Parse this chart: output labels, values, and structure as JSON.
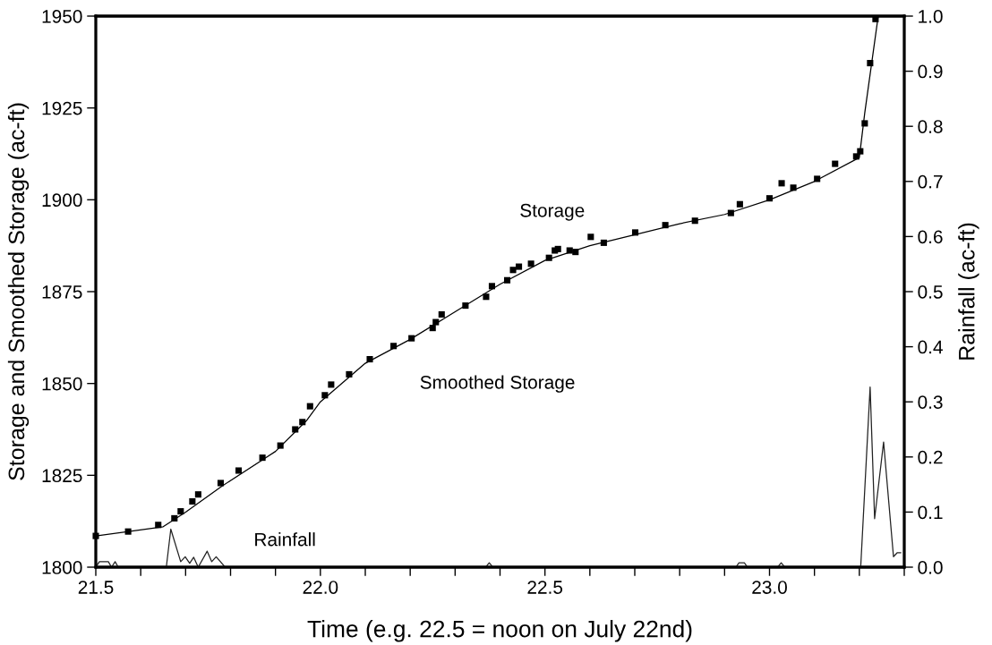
{
  "chart_data": {
    "type": "line",
    "xlabel": "Time (e.g. 22.5 = noon on July 22nd)",
    "ylabel": "Storage and Smoothed Storage (ac-ft)",
    "y2label": "Rainfall (ac-ft)",
    "xlim": [
      21.5,
      23.3
    ],
    "xticks": [
      {
        "value": 21.5,
        "label": "21.5"
      },
      {
        "value": 21.6,
        "label": null
      },
      {
        "value": 21.7,
        "label": null
      },
      {
        "value": 21.8,
        "label": null
      },
      {
        "value": 21.9,
        "label": null
      },
      {
        "value": 22.0,
        "label": "22.0"
      },
      {
        "value": 22.1,
        "label": null
      },
      {
        "value": 22.2,
        "label": null
      },
      {
        "value": 22.3,
        "label": null
      },
      {
        "value": 22.4,
        "label": null
      },
      {
        "value": 22.5,
        "label": "22.5"
      },
      {
        "value": 22.6,
        "label": null
      },
      {
        "value": 22.7,
        "label": null
      },
      {
        "value": 22.8,
        "label": null
      },
      {
        "value": 22.9,
        "label": null
      },
      {
        "value": 23.0,
        "label": "23.0"
      },
      {
        "value": 23.1,
        "label": null
      },
      {
        "value": 23.2,
        "label": null
      },
      {
        "value": 23.3,
        "label": null
      }
    ],
    "ylim": [
      1800,
      1950
    ],
    "yticks": [
      1800,
      1825,
      1850,
      1875,
      1900,
      1925,
      1950
    ],
    "y2lim": [
      0,
      1
    ],
    "y2ticks": [
      {
        "value": 0,
        "label": "0.0"
      },
      {
        "value": 0.1,
        "label": "0.1"
      },
      {
        "value": 0.2,
        "label": "0.2"
      },
      {
        "value": 0.3,
        "label": "0.3"
      },
      {
        "value": 0.4,
        "label": "0.4"
      },
      {
        "value": 0.5,
        "label": "0.5"
      },
      {
        "value": 0.6,
        "label": "0.6"
      },
      {
        "value": 0.7,
        "label": "0.7"
      },
      {
        "value": 0.8,
        "label": "0.8"
      },
      {
        "value": 0.9,
        "label": "0.9"
      },
      {
        "value": 1.0,
        "label": "1.0"
      }
    ],
    "grid": false,
    "legend": false,
    "series": [
      {
        "name": "Storage",
        "type": "scatter",
        "marker": "square",
        "color": "#000000",
        "x": [
          21.5,
          21.572,
          21.639,
          21.675,
          21.689,
          21.715,
          21.728,
          21.778,
          21.818,
          21.871,
          21.911,
          21.944,
          21.96,
          21.977,
          22.01,
          22.024,
          22.064,
          22.11,
          22.163,
          22.203,
          22.25,
          22.257,
          22.27,
          22.323,
          22.369,
          22.382,
          22.416,
          22.429,
          22.442,
          22.469,
          22.509,
          22.522,
          22.529,
          22.555,
          22.568,
          22.602,
          22.631,
          22.701,
          22.768,
          22.834,
          22.914,
          22.934,
          23.0,
          23.027,
          23.053,
          23.106,
          23.146,
          23.193,
          23.202,
          23.212,
          23.224,
          23.236
        ],
        "values": [
          1808.5,
          1809.7,
          1811.5,
          1813.3,
          1815.2,
          1817.9,
          1819.8,
          1822.9,
          1826.3,
          1829.8,
          1833.1,
          1837.5,
          1839.5,
          1843.8,
          1846.8,
          1849.7,
          1852.5,
          1856.6,
          1860.2,
          1862.3,
          1865.1,
          1866.7,
          1868.8,
          1871.2,
          1873.6,
          1876.5,
          1878.1,
          1880.9,
          1881.8,
          1882.6,
          1884.2,
          1886.2,
          1886.6,
          1886.2,
          1885.8,
          1889.9,
          1888.3,
          1891.1,
          1893.1,
          1894.3,
          1896.4,
          1898.8,
          1900.4,
          1904.5,
          1903.3,
          1905.7,
          1909.8,
          1911.8,
          1913.2,
          1920.8,
          1937.2,
          1949.2
        ]
      },
      {
        "name": "Smoothed Storage",
        "marker": "none",
        "color": "#000000",
        "x": [
          21.5,
          21.65,
          21.7,
          21.78,
          21.9,
          21.97,
          22.0,
          22.1,
          22.2,
          22.3,
          22.4,
          22.5,
          22.6,
          22.7,
          22.8,
          22.9,
          23.0,
          23.1,
          23.2,
          23.212,
          23.242
        ],
        "values": [
          1808.5,
          1811,
          1815,
          1822,
          1831.5,
          1840,
          1845,
          1855.5,
          1862,
          1869.5,
          1877,
          1883.5,
          1887.5,
          1890.5,
          1893.5,
          1896,
          1900,
          1905,
          1911.5,
          1923.6,
          1950
        ]
      },
      {
        "name": "Rainfall",
        "marker": "none",
        "axis": "y2",
        "color": "#222222",
        "x": [
          21.5,
          21.508,
          21.52,
          21.528,
          21.535,
          21.543,
          21.55,
          21.657,
          21.667,
          21.689,
          21.699,
          21.709,
          21.718,
          21.728,
          21.748,
          21.758,
          21.768,
          21.788,
          22.368,
          22.376,
          22.384,
          22.925,
          22.932,
          22.944,
          22.951,
          23.018,
          23.026,
          23.034,
          23.203,
          23.224,
          23.234,
          23.254,
          23.276,
          23.284,
          23.292
        ],
        "values": [
          0,
          0.01,
          0.01,
          0.01,
          0,
          0.01,
          0,
          0,
          0.069,
          0.01,
          0.019,
          0.007,
          0.018,
          0,
          0.029,
          0.01,
          0.019,
          0,
          0,
          0.008,
          0,
          0,
          0.008,
          0.008,
          0,
          0,
          0.008,
          0,
          0,
          0.327,
          0.088,
          0.227,
          0.019,
          0.026,
          0.026
        ]
      }
    ]
  }
}
